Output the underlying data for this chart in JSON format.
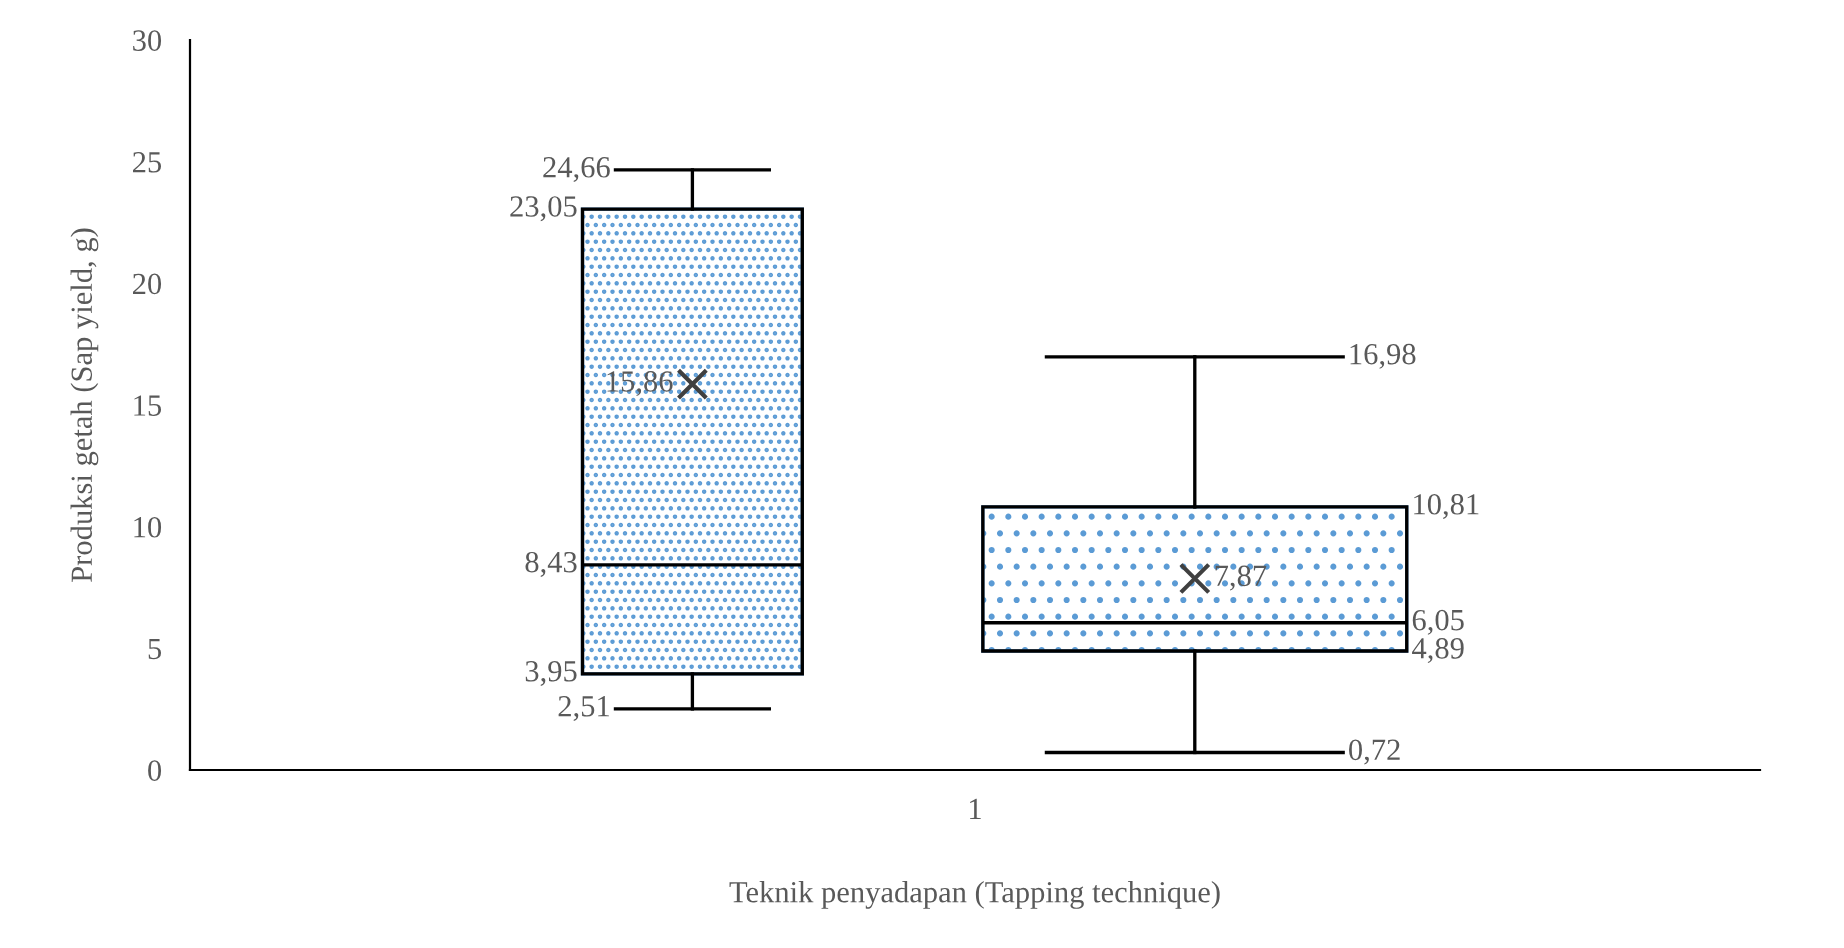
{
  "chart_data": {
    "type": "box",
    "xlabel": "Teknik penyadapan (Tapping technique)",
    "ylabel": "Produksi getah (Sap yield, g)",
    "categories": [
      "1"
    ],
    "series": [
      {
        "color": "#5b9bd5",
        "boxes": [
          {
            "low": 2.51,
            "q1": 3.95,
            "median": 8.43,
            "q3": 23.05,
            "high": 24.66,
            "mean": 15.86
          }
        ]
      },
      {
        "color": "#5b9bd5",
        "boxes": [
          {
            "low": 0.72,
            "q1": 4.89,
            "median": 6.05,
            "q3": 10.81,
            "high": 16.98,
            "mean": 7.87
          }
        ]
      }
    ],
    "ylim": [
      0,
      30
    ],
    "yticks": [
      0,
      5,
      10,
      15,
      20,
      25,
      30
    ],
    "grid": false,
    "annotations": [
      "24,66",
      "23,05",
      "15,86",
      "8,43",
      "3,95",
      "2,51",
      "16,98",
      "10,81",
      "7,87",
      "6,05",
      "4,89",
      "0,72"
    ]
  }
}
